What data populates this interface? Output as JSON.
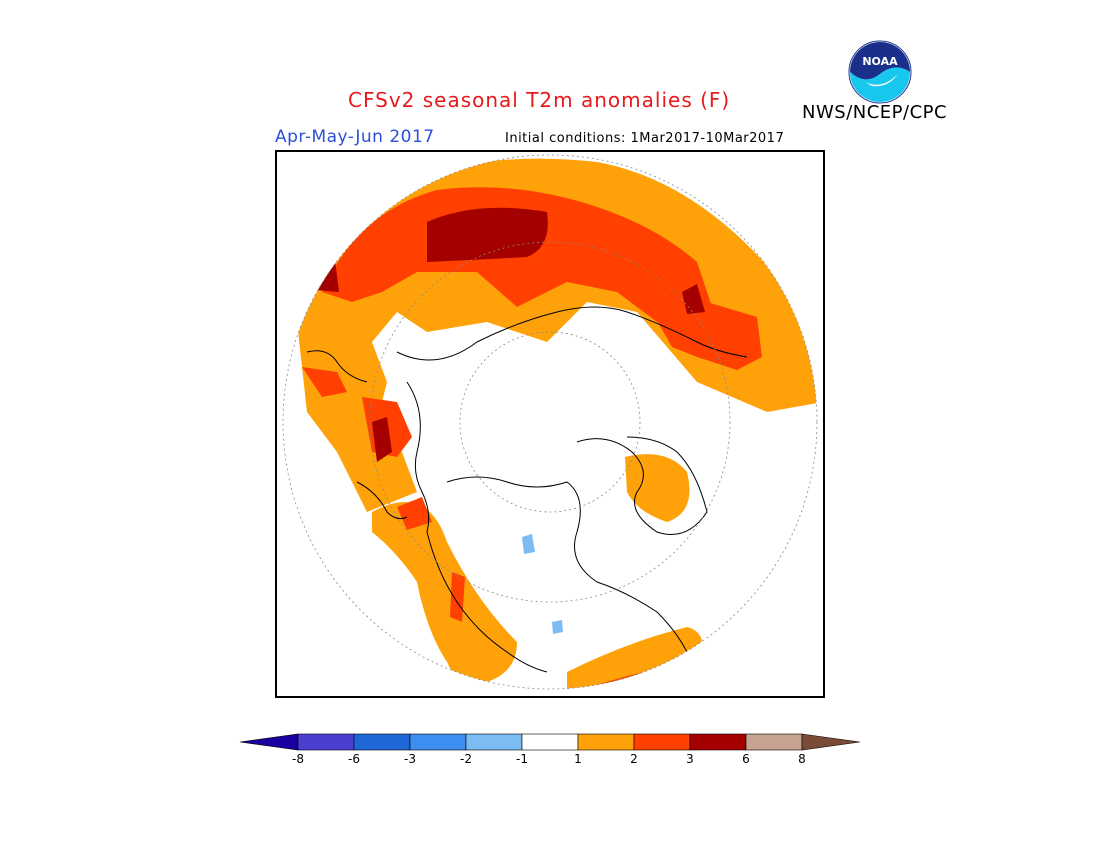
{
  "header": {
    "title": "CFSv2 seasonal T2m anomalies (F)",
    "period": "Apr-May-Jun 2017",
    "initial_conditions": "Initial conditions: 1Mar2017-10Mar2017",
    "agency": "NWS/NCEP/CPC",
    "logo_text": "NOAA"
  },
  "map": {
    "projection": "north polar stereographic",
    "variable": "T2m anomaly",
    "units": "F"
  },
  "legend": {
    "ticks": [
      "-8",
      "-6",
      "-3",
      "-2",
      "-1",
      "1",
      "2",
      "3",
      "6",
      "8"
    ],
    "colors": [
      "#1b00a0",
      "#4a3fd1",
      "#1f66d6",
      "#3c8ff0",
      "#7cbcf2",
      "#ffffff",
      "#ffa20a",
      "#ff4000",
      "#a50000",
      "#c8a290",
      "#7b4b37"
    ]
  }
}
